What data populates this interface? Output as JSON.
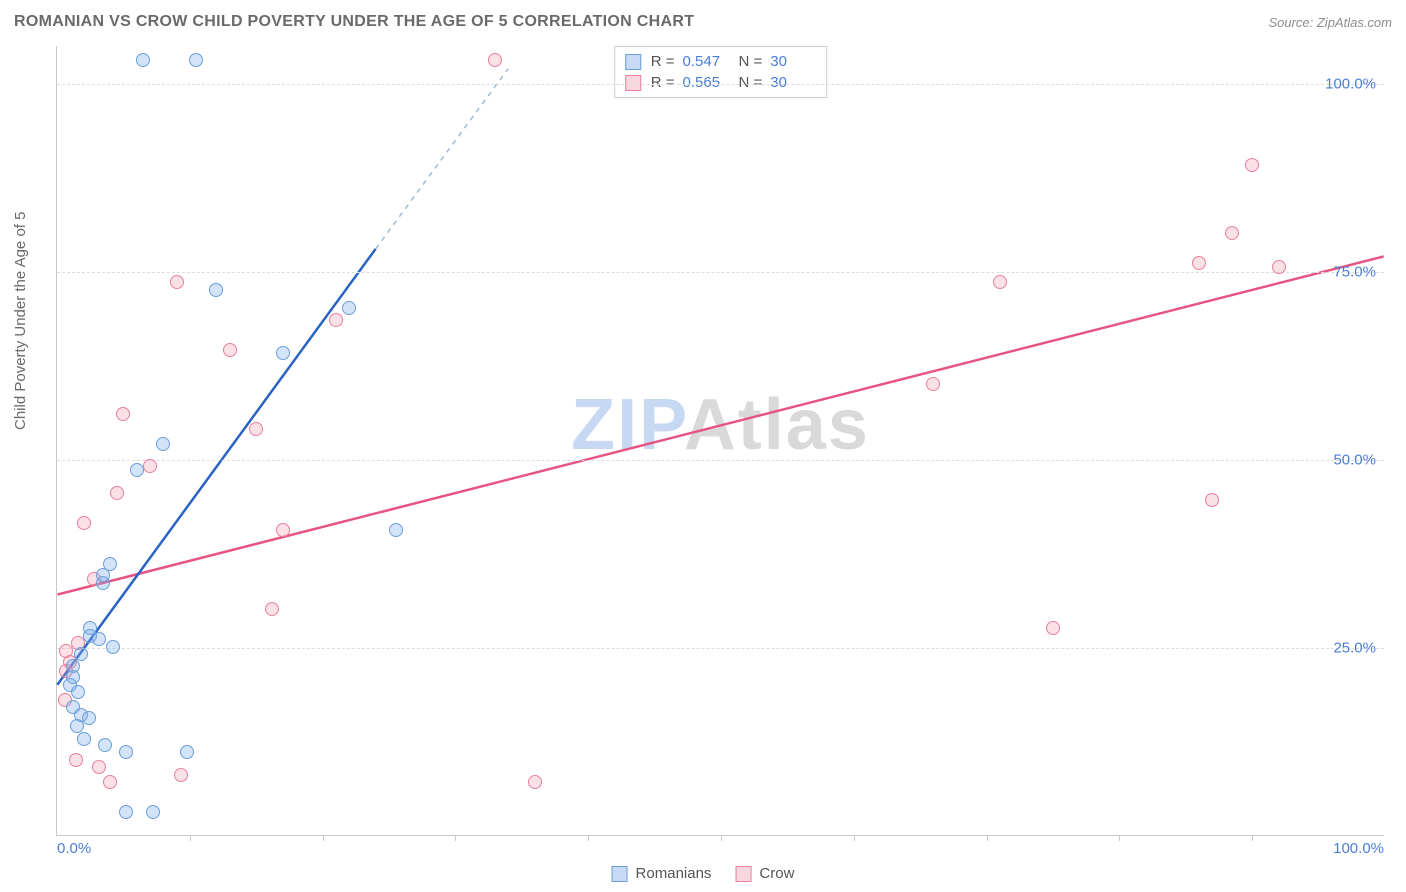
{
  "header": {
    "title": "ROMANIAN VS CROW CHILD POVERTY UNDER THE AGE OF 5 CORRELATION CHART",
    "source_prefix": "Source: ",
    "source": "ZipAtlas.com"
  },
  "axes": {
    "ylabel": "Child Poverty Under the Age of 5",
    "xlim": [
      0,
      100
    ],
    "ylim": [
      0,
      105
    ],
    "yticks": [
      25,
      50,
      75,
      100
    ],
    "ytick_labels": [
      "25.0%",
      "50.0%",
      "75.0%",
      "100.0%"
    ],
    "xticks_major": [
      0,
      100
    ],
    "xtick_labels_major": [
      "0.0%",
      "100.0%"
    ],
    "xticks_minor": [
      10,
      20,
      30,
      40,
      50,
      60,
      70,
      80,
      90
    ],
    "grid_color": "#dddddd",
    "axis_color": "#c9c9c9",
    "tick_label_color": "#4a7dd6",
    "label_color": "#6a6a6a",
    "label_fontsize": 15
  },
  "watermark": {
    "part1": "ZIP",
    "part2": "Atlas",
    "fontsize": 72,
    "color1": "#c7d8f2",
    "color2": "#d9d9d9"
  },
  "stats_box": {
    "rows": [
      {
        "series": "a",
        "R_label": "R =",
        "R": "0.547",
        "N_label": "N =",
        "N": "30"
      },
      {
        "series": "b",
        "R_label": "R =",
        "R": "0.565",
        "N_label": "N =",
        "N": "30"
      }
    ]
  },
  "legend": {
    "items": [
      {
        "series": "a",
        "label": "Romanians"
      },
      {
        "series": "b",
        "label": "Crow"
      }
    ]
  },
  "series": {
    "a": {
      "name": "Romanians",
      "color_fill": "rgba(130,175,235,0.35)",
      "color_stroke": "#6b9edb",
      "line_color": "#2a63c4",
      "line_dash_color": "#9fb9d9",
      "line_width": 2.5,
      "marker_radius": 7,
      "trend": {
        "x1": 0,
        "y1": 20,
        "x2": 24,
        "y2": 78
      },
      "trend_dash": {
        "x1": 24,
        "y1": 78,
        "x2": 34,
        "y2": 102
      },
      "points": [
        {
          "x": 6.5,
          "y": 103
        },
        {
          "x": 10.5,
          "y": 103
        },
        {
          "x": 12,
          "y": 72.5
        },
        {
          "x": 22,
          "y": 70
        },
        {
          "x": 17,
          "y": 64
        },
        {
          "x": 8,
          "y": 52
        },
        {
          "x": 6,
          "y": 48.5
        },
        {
          "x": 25.5,
          "y": 40.5
        },
        {
          "x": 4,
          "y": 36
        },
        {
          "x": 3.5,
          "y": 33.5
        },
        {
          "x": 3.5,
          "y": 34.5
        },
        {
          "x": 2.5,
          "y": 27.5
        },
        {
          "x": 2.5,
          "y": 26.5
        },
        {
          "x": 3.2,
          "y": 26
        },
        {
          "x": 4.2,
          "y": 25
        },
        {
          "x": 1.8,
          "y": 24
        },
        {
          "x": 1.2,
          "y": 22.5
        },
        {
          "x": 1.2,
          "y": 21
        },
        {
          "x": 1,
          "y": 20
        },
        {
          "x": 1.6,
          "y": 19
        },
        {
          "x": 1.2,
          "y": 17
        },
        {
          "x": 1.8,
          "y": 16
        },
        {
          "x": 2.4,
          "y": 15.5
        },
        {
          "x": 1.5,
          "y": 14.5
        },
        {
          "x": 3.6,
          "y": 12
        },
        {
          "x": 2,
          "y": 12.8
        },
        {
          "x": 5.2,
          "y": 11
        },
        {
          "x": 9.8,
          "y": 11
        },
        {
          "x": 7.2,
          "y": 3
        },
        {
          "x": 5.2,
          "y": 3
        }
      ]
    },
    "b": {
      "name": "Crow",
      "color_fill": "rgba(240,155,175,0.30)",
      "color_stroke": "#e97f9c",
      "line_color": "#e75480",
      "line_width": 2.5,
      "marker_radius": 7,
      "trend": {
        "x1": 0,
        "y1": 32,
        "x2": 100,
        "y2": 77
      },
      "points": [
        {
          "x": 33,
          "y": 103
        },
        {
          "x": 90,
          "y": 89
        },
        {
          "x": 88.5,
          "y": 80
        },
        {
          "x": 86,
          "y": 76
        },
        {
          "x": 92,
          "y": 75.5
        },
        {
          "x": 71,
          "y": 73.5
        },
        {
          "x": 9,
          "y": 73.5
        },
        {
          "x": 21,
          "y": 68.5
        },
        {
          "x": 13,
          "y": 64.5
        },
        {
          "x": 66,
          "y": 60
        },
        {
          "x": 5,
          "y": 56
        },
        {
          "x": 15,
          "y": 54
        },
        {
          "x": 7,
          "y": 49
        },
        {
          "x": 4.5,
          "y": 45.5
        },
        {
          "x": 87,
          "y": 44.5
        },
        {
          "x": 2,
          "y": 41.5
        },
        {
          "x": 17,
          "y": 40.5
        },
        {
          "x": 2.8,
          "y": 34
        },
        {
          "x": 16.2,
          "y": 30
        },
        {
          "x": 75,
          "y": 27.5
        },
        {
          "x": 1.6,
          "y": 25.5
        },
        {
          "x": 0.7,
          "y": 24.5
        },
        {
          "x": 1,
          "y": 23
        },
        {
          "x": 0.7,
          "y": 21.8
        },
        {
          "x": 0.6,
          "y": 18
        },
        {
          "x": 1.4,
          "y": 10
        },
        {
          "x": 3.2,
          "y": 9
        },
        {
          "x": 9.3,
          "y": 8
        },
        {
          "x": 4,
          "y": 7
        },
        {
          "x": 36,
          "y": 7
        }
      ]
    }
  },
  "background_color": "#ffffff"
}
